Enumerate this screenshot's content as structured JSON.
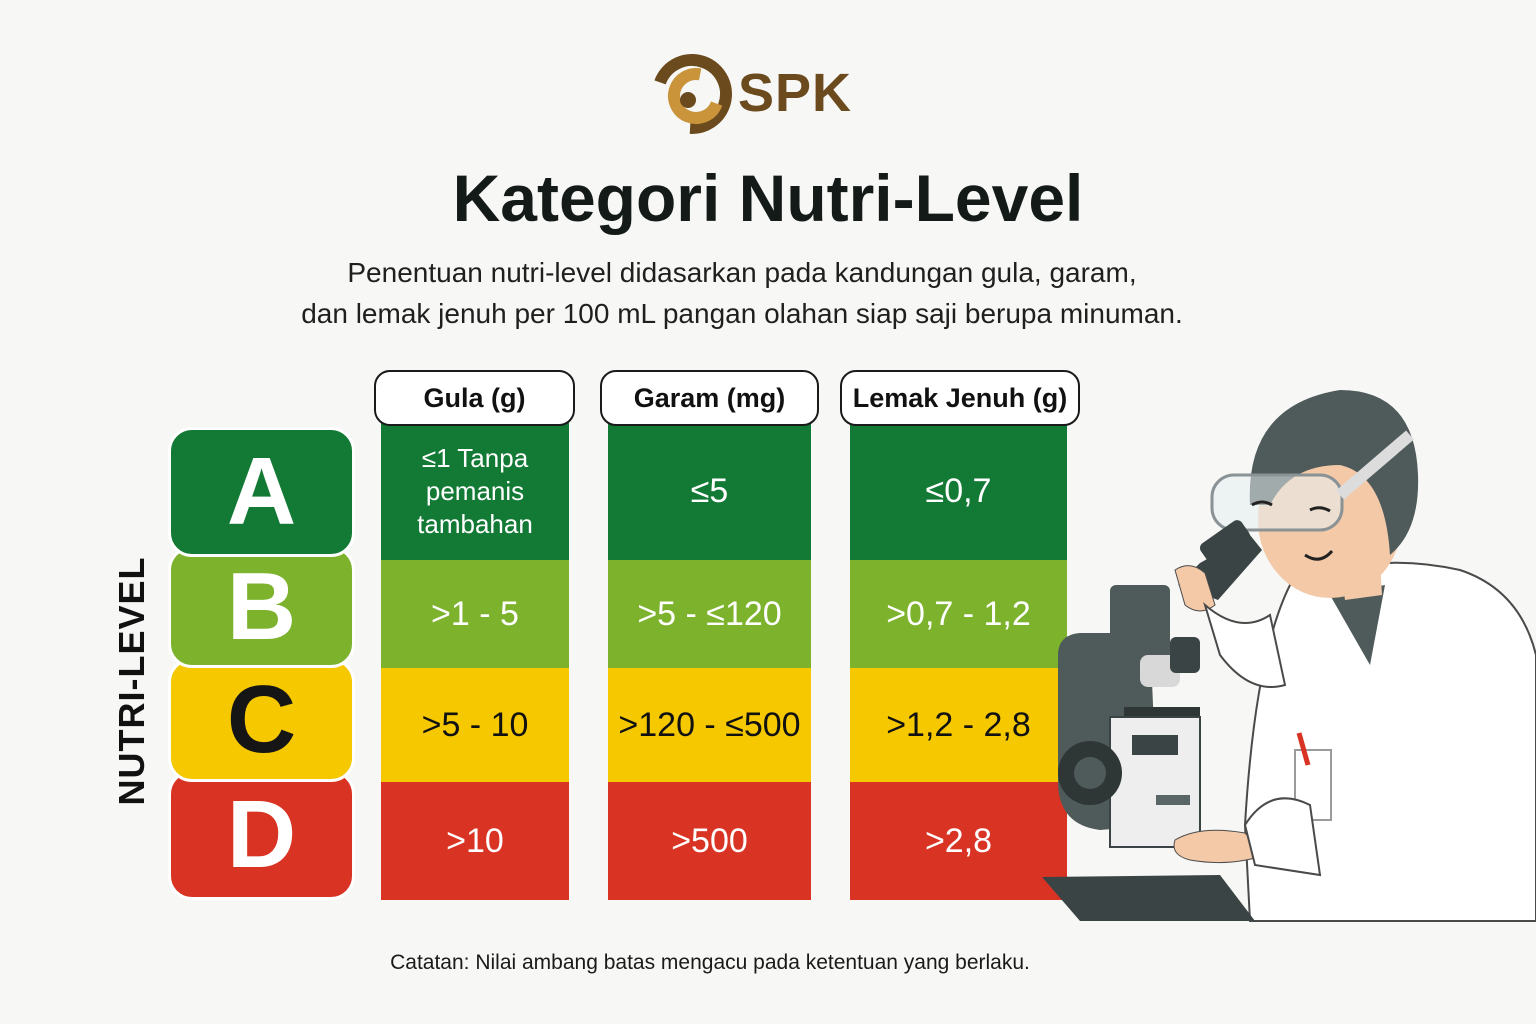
{
  "logo": {
    "text": "SPK",
    "brand_color": "#6b4a1e",
    "accent_color": "#c9943a"
  },
  "title": "Kategori Nutri-Level",
  "subtitle_line1": "Penentuan nutri-level didasarkan pada kandungan gula, garam,",
  "subtitle_line2": "dan lemak jenuh per 100 mL pangan olahan siap saji berupa minuman.",
  "axis_label": "NUTRI-LEVEL",
  "columns": [
    "Gula (g)",
    "Garam (mg)",
    "Lemak Jenuh (g)"
  ],
  "levels": [
    {
      "grade": "A",
      "color": "#137a35",
      "values": [
        "≤1 Tanpa pemanis tambahan",
        "≤5",
        "≤0,7"
      ]
    },
    {
      "grade": "B",
      "color": "#7cb22c",
      "values": [
        ">1 - 5",
        ">5 - ≤120",
        ">0,7 - 1,2"
      ]
    },
    {
      "grade": "C",
      "color": "#f5c800",
      "values": [
        ">5 - 10",
        ">120 - ≤500",
        ">1,2 - 2,8"
      ]
    },
    {
      "grade": "D",
      "color": "#d93324",
      "values": [
        ">10",
        ">500",
        ">2,8"
      ]
    }
  ],
  "a_gula_lines": [
    "≤1 Tanpa",
    "pemanis",
    "tambahan"
  ],
  "note": "Catatan: Nilai ambang batas mengacu pada ketentuan yang berlaku.",
  "illustration": "scientist-with-microscope"
}
